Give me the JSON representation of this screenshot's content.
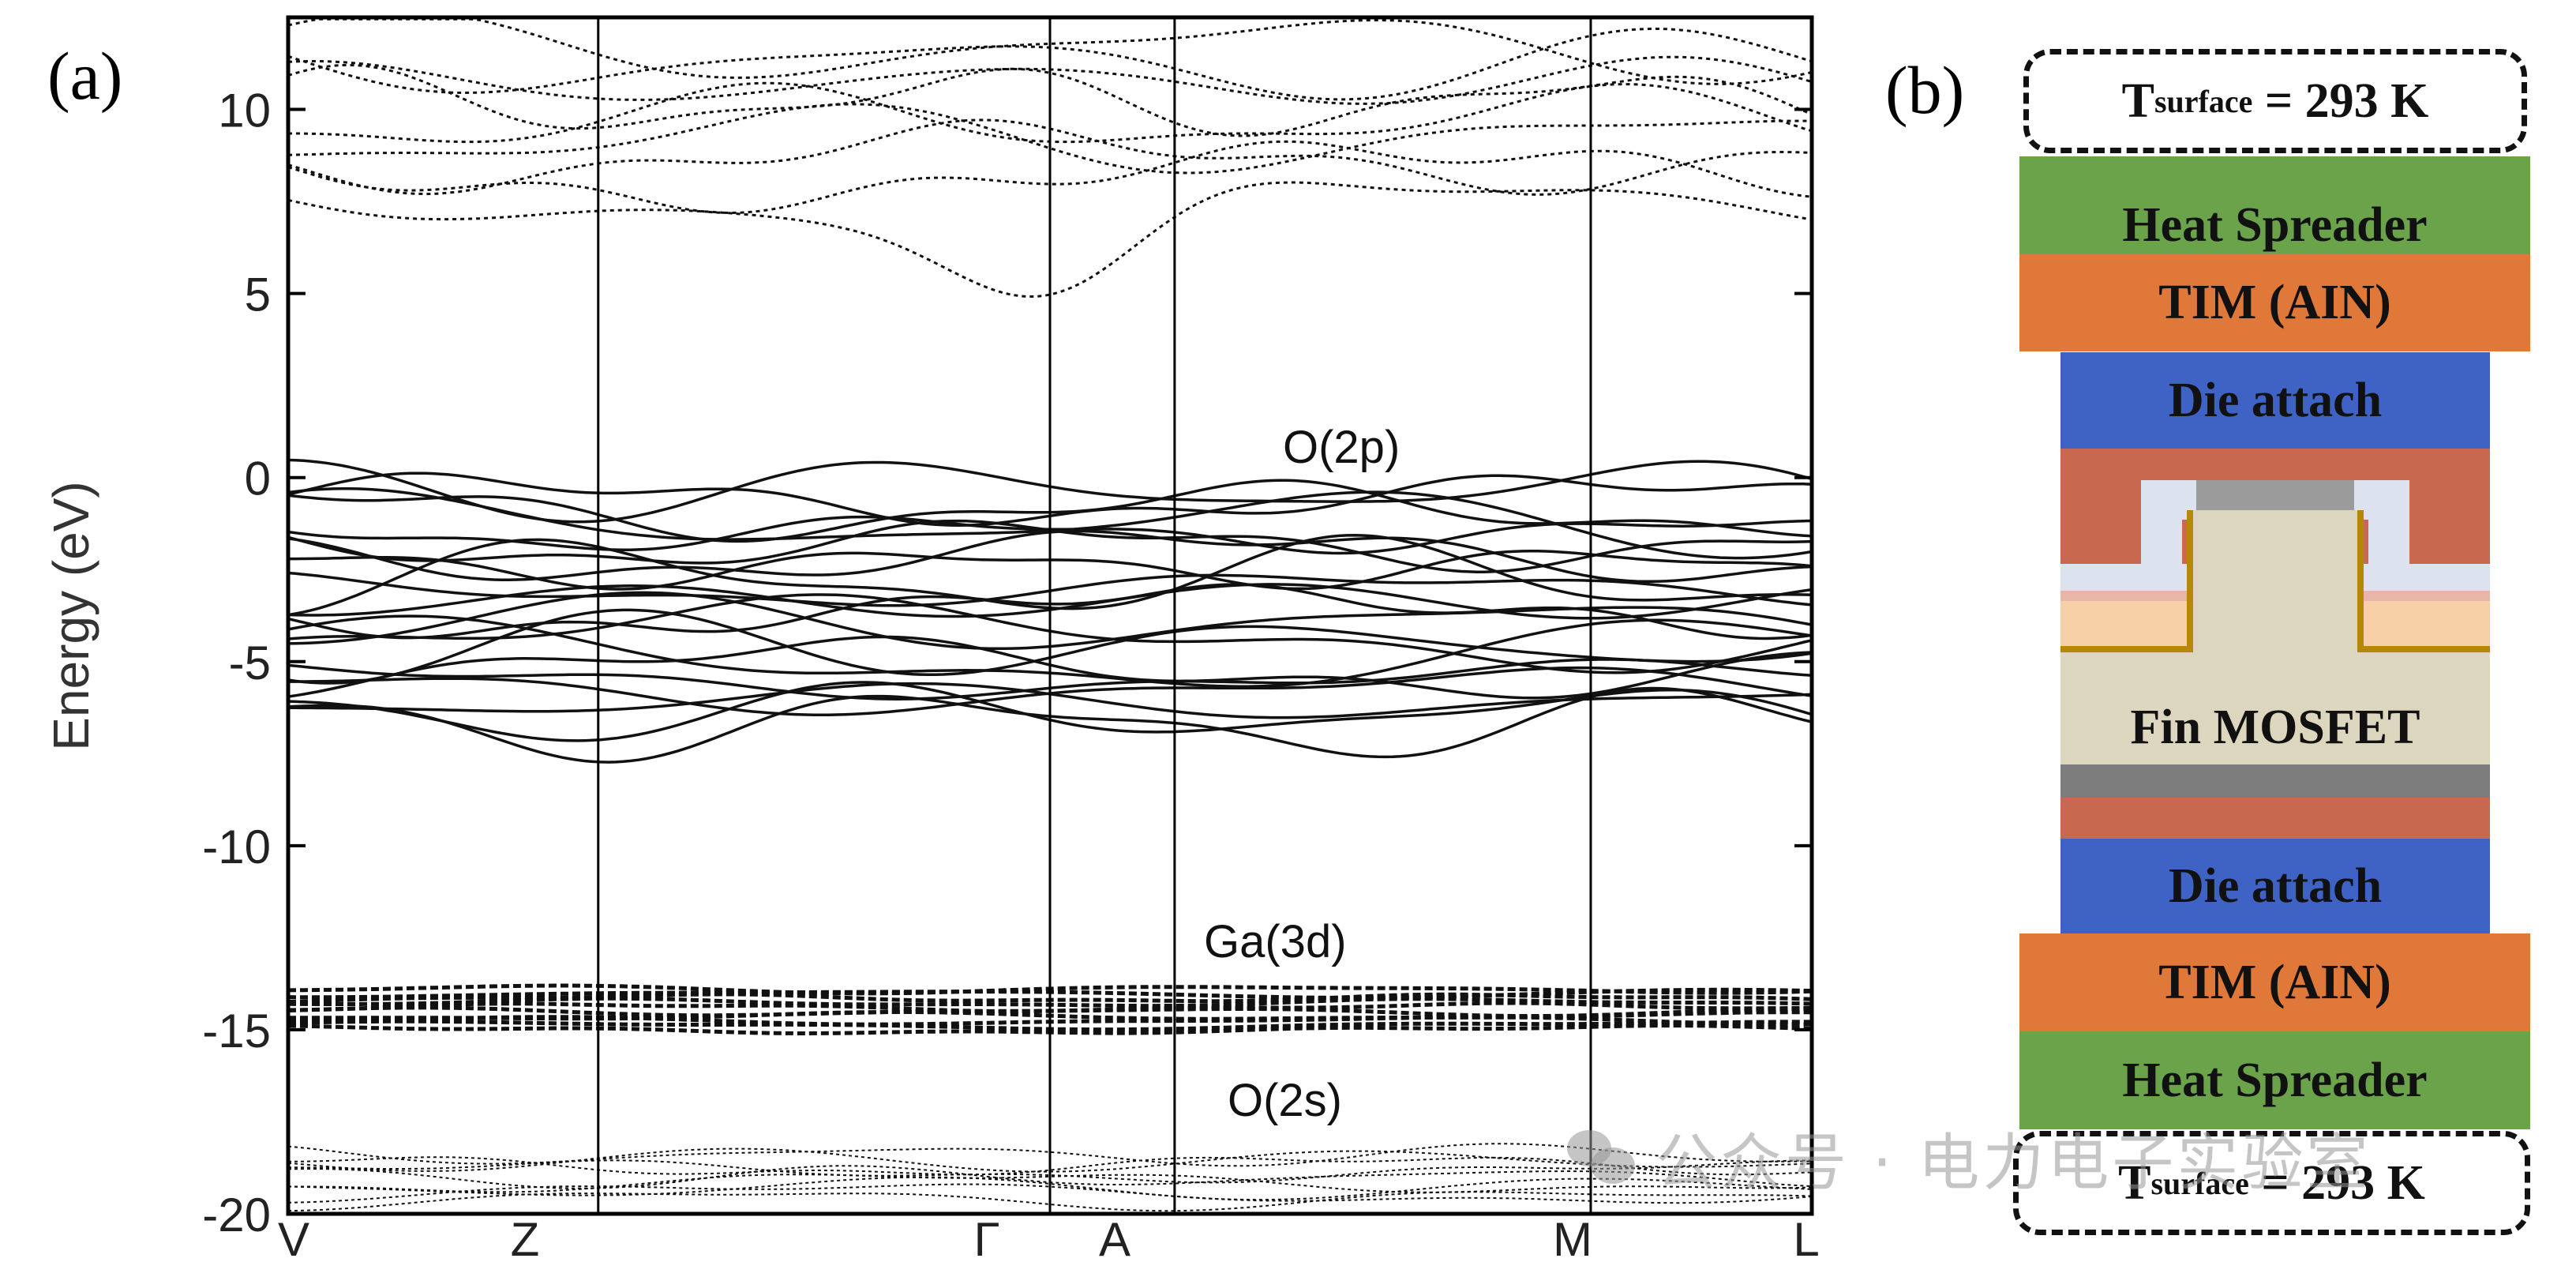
{
  "panel_a": {
    "label": "(a)",
    "chart_data": {
      "type": "line",
      "ylabel": "Energy (eV)",
      "ylim": [
        -20,
        12.5
      ],
      "yticks": [
        10,
        5,
        0,
        -5,
        -10,
        -15,
        -20
      ],
      "ytick_labels": [
        "10",
        "5",
        "0",
        "-5",
        "-10",
        "-15",
        "-20"
      ],
      "kpath": [
        "V",
        "Z",
        "Γ",
        "A",
        "M",
        "L"
      ],
      "kpath_positions": [
        0,
        0.2035,
        0.5,
        0.5818,
        0.8549,
        1
      ],
      "grid": "vertical lines at high-symmetry points",
      "annotations": [
        {
          "text": "O(2p)",
          "energy": 1.3
        },
        {
          "text": "Ga(3d)",
          "energy": -12.8
        },
        {
          "text": "O(2s)",
          "energy": -17.1
        }
      ],
      "bands": {
        "conduction_min_at_gamma": 4.7,
        "conduction_range": [
          4.7,
          12.5
        ],
        "valence_O2p_range": [
          -7.0,
          0
        ],
        "Ga3d_range": [
          -15.3,
          -13.7
        ],
        "O2s_range": [
          -19.9,
          -18.2
        ]
      }
    }
  },
  "panel_b": {
    "label": "(b)",
    "top_surface": {
      "main": "T",
      "sub": "surface",
      "rest": " = 293 K"
    },
    "bottom_surface": {
      "main": "T",
      "sub": "surface",
      "rest": " = 293 K"
    },
    "layers": [
      {
        "id": "heat-spreader-top",
        "label": "Heat Spreader",
        "color": "#6aa34a"
      },
      {
        "id": "tim-top",
        "label": "TIM (AIN)",
        "color": "#e0783a"
      },
      {
        "id": "die-attach-top",
        "label": "Die attach",
        "color": "#3e63c4"
      },
      {
        "id": "fin-mosfet",
        "label": "Fin MOSFET",
        "color": "#ddd6be"
      },
      {
        "id": "die-attach-bottom",
        "label": "Die attach",
        "color": "#3e63c4"
      },
      {
        "id": "tim-bottom",
        "label": "TIM (AIN)",
        "color": "#e0783a"
      },
      {
        "id": "heat-spreader-bottom",
        "label": "Heat Spreader",
        "color": "#6aa34a"
      }
    ]
  },
  "watermark": "公众号 · 电力电子实验室"
}
